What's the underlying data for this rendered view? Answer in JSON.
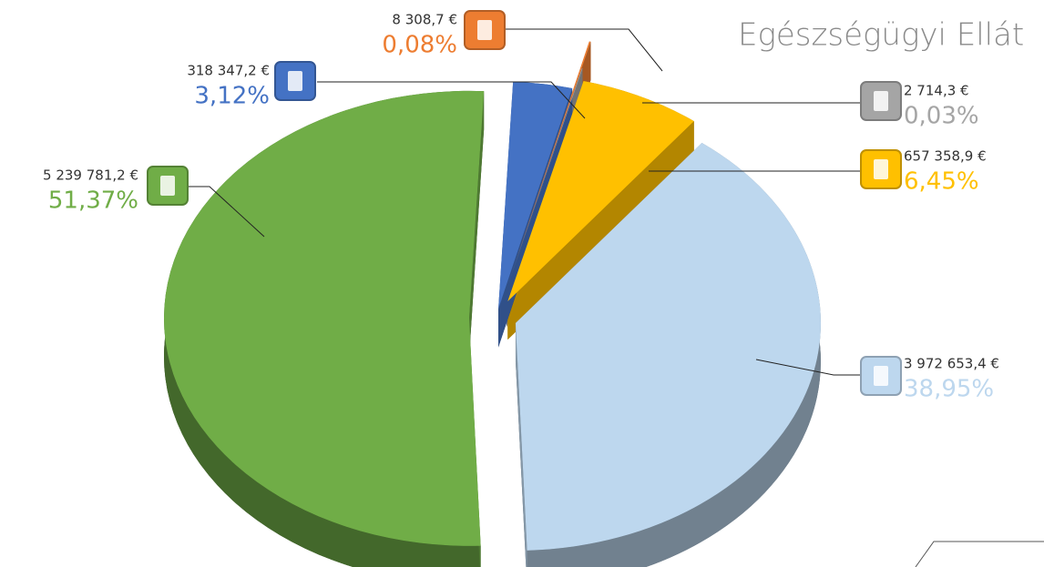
{
  "chart_data": {
    "type": "pie",
    "title": "Egészségügyi Ellát",
    "values": [
      0.08,
      0.03,
      6.45,
      38.95,
      51.37,
      3.12
    ],
    "value_labels": [
      "0,08%",
      "0,03%",
      "6,45%",
      "38,95%",
      "51,37%",
      "3,12%"
    ],
    "amounts": [
      8308.7,
      2714.3,
      657358.9,
      3972653.4,
      5239781.2,
      318347.2
    ],
    "amount_labels": [
      "8 308,7 €",
      "2 714,3 €",
      "657 358,9 €",
      "3 972 653,4 €",
      "5 239 781,2 €",
      "318 347,2 €"
    ],
    "colors": [
      "#ed7d31",
      "#a5a5a5",
      "#ffc000",
      "#bdd7ee",
      "#70ad47",
      "#4472c4"
    ]
  }
}
